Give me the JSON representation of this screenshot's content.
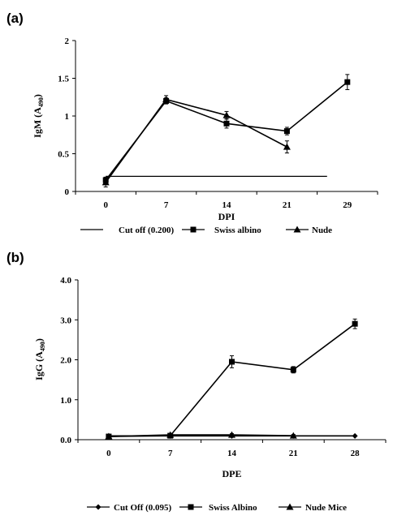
{
  "chart_data": [
    {
      "type": "line",
      "panel_label": "(a)",
      "x": [
        "0",
        "7",
        "14",
        "21",
        "29"
      ],
      "xlabel": "DPI",
      "ylabel_main": "IgM (A",
      "ylabel_sub": "490",
      "ylabel_close": ")",
      "ylim": [
        0,
        2
      ],
      "yticks": [
        "0",
        "0.5",
        "1",
        "1.5",
        "2"
      ],
      "grid": false,
      "legend_position": "bottom",
      "series": [
        {
          "name": "Cut off (0.200)",
          "marker": "none",
          "values": [
            0.2,
            0.2,
            0.2,
            0.2,
            0.2
          ],
          "errors": [
            0,
            0,
            0,
            0,
            0
          ]
        },
        {
          "name": "Swiss albino",
          "marker": "square",
          "values": [
            0.15,
            1.2,
            0.9,
            0.8,
            1.45
          ],
          "errors": [
            0.04,
            0.04,
            0.06,
            0.05,
            0.1
          ]
        },
        {
          "name": "Nude",
          "marker": "triangle",
          "values": [
            0.12,
            1.22,
            1.01,
            0.59,
            null
          ],
          "errors": [
            0.06,
            0.05,
            0.05,
            0.08,
            0
          ]
        }
      ]
    },
    {
      "type": "line",
      "panel_label": "(b)",
      "x": [
        "0",
        "7",
        "14",
        "21",
        "28"
      ],
      "xlabel": "DPE",
      "ylabel_main": "IgG (A",
      "ylabel_sub": "490",
      "ylabel_close": ")",
      "ylim": [
        0,
        4
      ],
      "yticks": [
        "0.0",
        "1.0",
        "2.0",
        "3.0",
        "4.0"
      ],
      "grid": false,
      "legend_position": "bottom",
      "series": [
        {
          "name": "Cut Off (0.095)",
          "marker": "diamond",
          "values": [
            0.095,
            0.095,
            0.095,
            0.095,
            0.095
          ],
          "errors": [
            0,
            0,
            0,
            0,
            0
          ]
        },
        {
          "name": "Swiss Albino",
          "marker": "square",
          "values": [
            0.08,
            0.1,
            1.95,
            1.75,
            2.9
          ],
          "errors": [
            0.03,
            0.03,
            0.15,
            0.08,
            0.12
          ]
        },
        {
          "name": "Nude Mice",
          "marker": "triangle",
          "values": [
            0.08,
            0.12,
            0.12,
            0.1,
            null
          ],
          "errors": [
            0.03,
            0.03,
            0.03,
            0.03,
            0
          ]
        }
      ]
    }
  ]
}
